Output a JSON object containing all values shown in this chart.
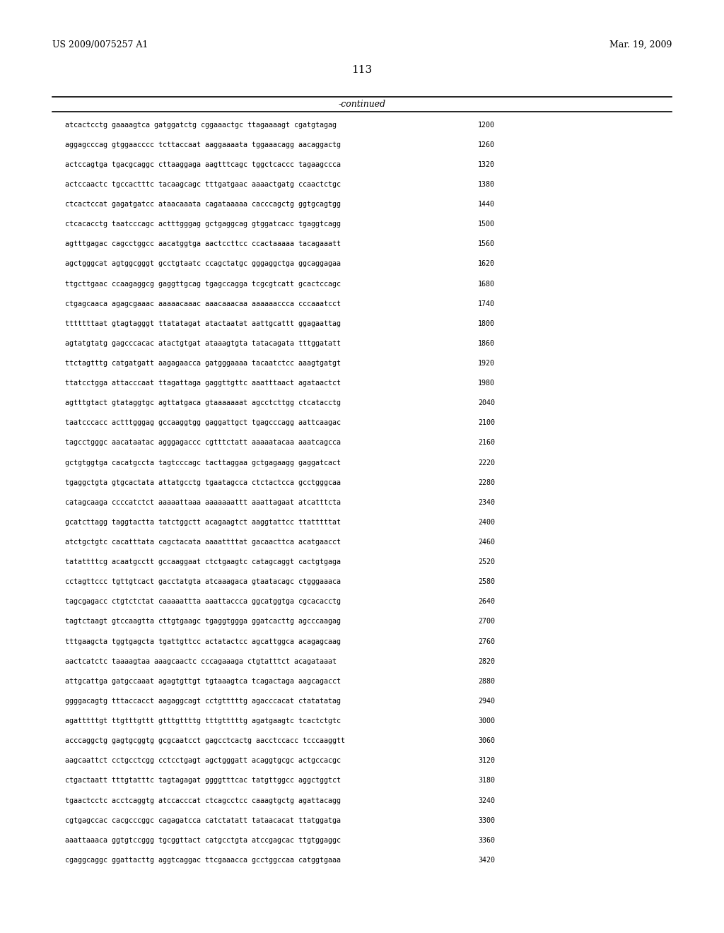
{
  "header_left": "US 2009/0075257 A1",
  "header_right": "Mar. 19, 2009",
  "page_number": "113",
  "continued_label": "-continued",
  "background_color": "#ffffff",
  "text_color": "#000000",
  "sequences": [
    [
      "atcactcctg gaaaagtca gatggatctg cggaaactgc ttagaaaagt cgatgtagag",
      "1200"
    ],
    [
      "aggagcccag gtggaacccc tcttaccaat aaggaaaata tggaaacagg aacaggactg",
      "1260"
    ],
    [
      "actccagtga tgacgcaggc cttaaggaga aagtttcagc tggctcaccc tagaagccca",
      "1320"
    ],
    [
      "actccaactc tgccactttc tacaagcagc tttgatgaac aaaactgatg ccaactctgc",
      "1380"
    ],
    [
      "ctcactccat gagatgatcc ataacaaata cagataaaaa cacccagctg ggtgcagtgg",
      "1440"
    ],
    [
      "ctcacacctg taatcccagc actttgggag gctgaggcag gtggatcacc tgaggtcagg",
      "1500"
    ],
    [
      "agtttgagac cagcctggcc aacatggtga aactccttcc ccactaaaaa tacagaaatt",
      "1560"
    ],
    [
      "agctgggcat agtggcgggt gcctgtaatc ccagctatgc gggaggctga ggcaggagaa",
      "1620"
    ],
    [
      "ttgcttgaac ccaagaggcg gaggttgcag tgagccagga tcgcgtcatt gcactccagc",
      "1680"
    ],
    [
      "ctgagcaaca agagcgaaac aaaaacaaac aaacaaacaa aaaaaaccca cccaaatcct",
      "1740"
    ],
    [
      "tttttttaat gtagtagggt ttatatagat atactaatat aattgcattt ggagaattag",
      "1800"
    ],
    [
      "agtatgtatg gagcccacac atactgtgat ataaagtgta tatacagata tttggatatt",
      "1860"
    ],
    [
      "ttctagtttg catgatgatt aagagaacca gatgggaaaa tacaatctcc aaagtgatgt",
      "1920"
    ],
    [
      "ttatcctgga attacccaat ttagattaga gaggttgttc aaatttaact agataactct",
      "1980"
    ],
    [
      "agtttgtact gtataggtgc agttatgaca gtaaaaaaat agcctcttgg ctcatacctg",
      "2040"
    ],
    [
      "taatcccacc actttgggag gccaaggtgg gaggattgct tgagcccagg aattcaagac",
      "2100"
    ],
    [
      "tagcctgggc aacataatac agggagaccc cgtttctatt aaaaatacaa aaatcagcca",
      "2160"
    ],
    [
      "gctgtggtga cacatgccta tagtcccagc tacttaggaa gctgagaagg gaggatcact",
      "2220"
    ],
    [
      "tgaggctgta gtgcactata attatgcctg tgaatagcca ctctactcca gcctgggcaa",
      "2280"
    ],
    [
      "catagcaaga ccccatctct aaaaattaaa aaaaaaattt aaattagaat atcatttcta",
      "2340"
    ],
    [
      "gcatcttagg taggtactta tatctggctt acagaagtct aaggtattcc ttatttttat",
      "2400"
    ],
    [
      "atctgctgtc cacatttata cagctacata aaaattttat gacaacttca acatgaacct",
      "2460"
    ],
    [
      "tatattttcg acaatgcctt gccaaggaat ctctgaagtc catagcaggt cactgtgaga",
      "2520"
    ],
    [
      "cctagttccc tgttgtcact gacctatgta atcaaagaca gtaatacagc ctgggaaaca",
      "2580"
    ],
    [
      "tagcgagacc ctgtctctat caaaaattta aaattaccca ggcatggtga cgcacacctg",
      "2640"
    ],
    [
      "tagtctaagt gtccaagtta cttgtgaagc tgaggtggga ggatcacttg agcccaagag",
      "2700"
    ],
    [
      "tttgaagcta tggtgagcta tgattgttcc actatactcc agcattggca acagagcaag",
      "2760"
    ],
    [
      "aactcatctc taaaagtaa aaagcaactc cccagaaaga ctgtatttct acagataaat",
      "2820"
    ],
    [
      "attgcattga gatgccaaat agagtgttgt tgtaaagtca tcagactaga aagcagacct",
      "2880"
    ],
    [
      "ggggacagtg tttaccacct aagaggcagt cctgtttttg agacccacat ctatatatag",
      "2940"
    ],
    [
      "agatttttgt ttgtttgttt gtttgttttg tttgtttttg agatgaagtc tcactctgtc",
      "3000"
    ],
    [
      "acccaggctg gagtgcggtg gcgcaatcct gagcctcactg aacctccacc tcccaaggtt",
      "3060"
    ],
    [
      "aagcaattct cctgcctcgg cctcctgagt agctgggatt acaggtgcgc actgccacgc",
      "3120"
    ],
    [
      "ctgactaatt tttgtatttc tagtagagat ggggtttcac tatgttggcc aggctggtct",
      "3180"
    ],
    [
      "tgaactcctc acctcaggtg atccacccat ctcagcctcc caaagtgctg agattacagg",
      "3240"
    ],
    [
      "cgtgagccac cacgcccggc cagagatcca catctatatt tataacacat ttatggatga",
      "3300"
    ],
    [
      "aaattaaaca ggtgtccggg tgcggttact catgcctgta atccgagcac ttgtggaggc",
      "3360"
    ],
    [
      "cgaggcaggc ggattacttg aggtcaggac ttcgaaacca gcctggccaa catggtgaaa",
      "3420"
    ]
  ]
}
